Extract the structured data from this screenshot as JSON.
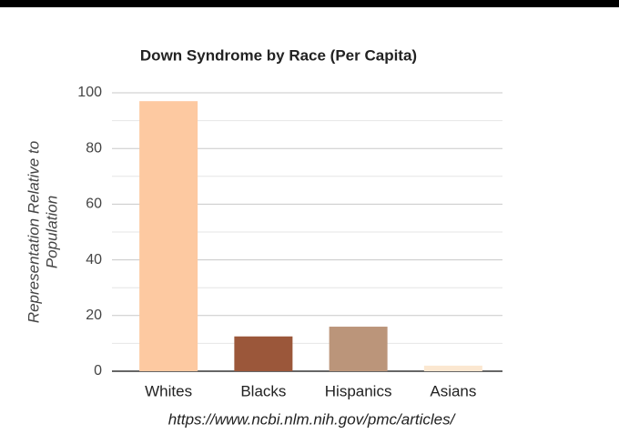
{
  "chart_data": {
    "type": "bar",
    "title": "Down Syndrome by Race (Per Capita)",
    "ylabel": [
      "Representation Relative to",
      "Population"
    ],
    "categories": [
      "Whites",
      "Blacks",
      "Hispanics",
      "Asians"
    ],
    "values": [
      97,
      12.5,
      16,
      2
    ],
    "colors": [
      "#fdc9a1",
      "#9b573a",
      "#bb957a",
      "#fbe7d0"
    ],
    "ylim": [
      0,
      100
    ],
    "yticks": [
      0,
      20,
      40,
      60,
      80,
      100
    ],
    "minor_yticks": [
      10,
      30,
      50,
      70,
      90
    ],
    "grid": true,
    "source": "https://www.ncbi.nlm.nih.gov/pmc/articles/"
  }
}
